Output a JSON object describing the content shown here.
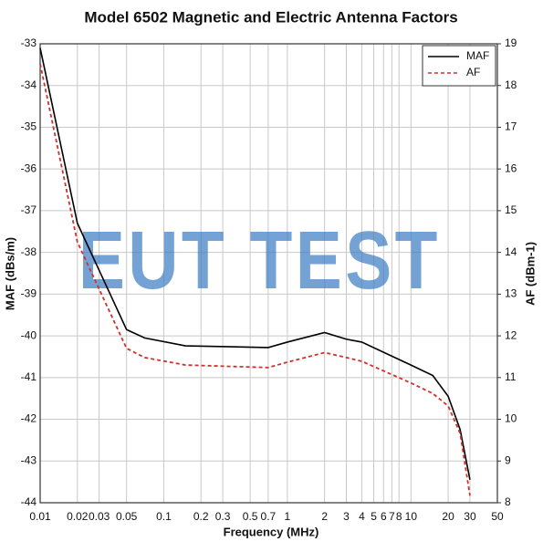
{
  "chart_data": {
    "type": "line",
    "title": "Model 6502 Magnetic and Electric Antenna Factors",
    "x_label": "Frequency (MHz)",
    "y_label": "MAF (dBs/m)",
    "y2_label": "AF (dBm-1)",
    "watermark": "EUT TEST",
    "x_log": true,
    "grid": true,
    "legend_position": "upper-right",
    "x": [
      0.01,
      0.02,
      0.05,
      0.07,
      0.15,
      0.7,
      1,
      2,
      3,
      4,
      10,
      15,
      20,
      25,
      30
    ],
    "xlim": [
      0.01,
      50
    ],
    "xticks": [
      0.01,
      0.02,
      0.03,
      0.05,
      0.1,
      0.2,
      0.3,
      0.5,
      0.7,
      1,
      2,
      3,
      4,
      5,
      6,
      7,
      8,
      10,
      20,
      30,
      50
    ],
    "ylim": [
      -44,
      -33
    ],
    "yticks": [
      -44,
      -43,
      -42,
      -41,
      -40,
      -39,
      -38,
      -37,
      -36,
      -35,
      -34,
      -33
    ],
    "y2lim": [
      8,
      19
    ],
    "y2ticks": [
      8,
      9,
      10,
      11,
      12,
      13,
      14,
      15,
      16,
      17,
      18,
      19
    ],
    "series": [
      {
        "name": "MAF",
        "color": "#000000",
        "dash": false,
        "values": [
          -33.1,
          -37.3,
          -39.85,
          -40.05,
          -40.24,
          -40.28,
          -40.15,
          -39.92,
          -40.08,
          -40.15,
          -40.7,
          -40.95,
          -41.45,
          -42.25,
          -43.45
        ]
      },
      {
        "name": "AF",
        "color": "#d0312d",
        "dash": true,
        "axis": "y2",
        "values": [
          18.52,
          14.25,
          11.7,
          11.48,
          11.3,
          11.24,
          11.37,
          11.6,
          11.48,
          11.39,
          10.87,
          10.62,
          10.32,
          9.66,
          8.17
        ]
      }
    ]
  }
}
